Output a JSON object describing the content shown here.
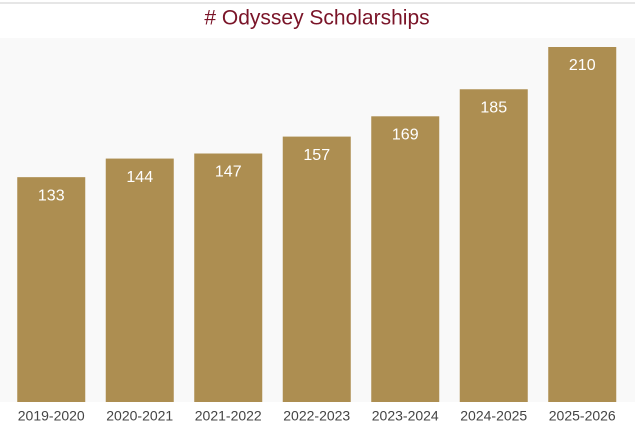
{
  "chart_data": {
    "type": "bar",
    "title": "# Odyssey Scholarships",
    "categories": [
      "2019-2020",
      "2020-2021",
      "2021-2022",
      "2022-2023",
      "2023-2024",
      "2024-2025",
      "2025-2026"
    ],
    "values": [
      133,
      144,
      147,
      157,
      169,
      185,
      210
    ],
    "color": "#ad8e51"
  }
}
